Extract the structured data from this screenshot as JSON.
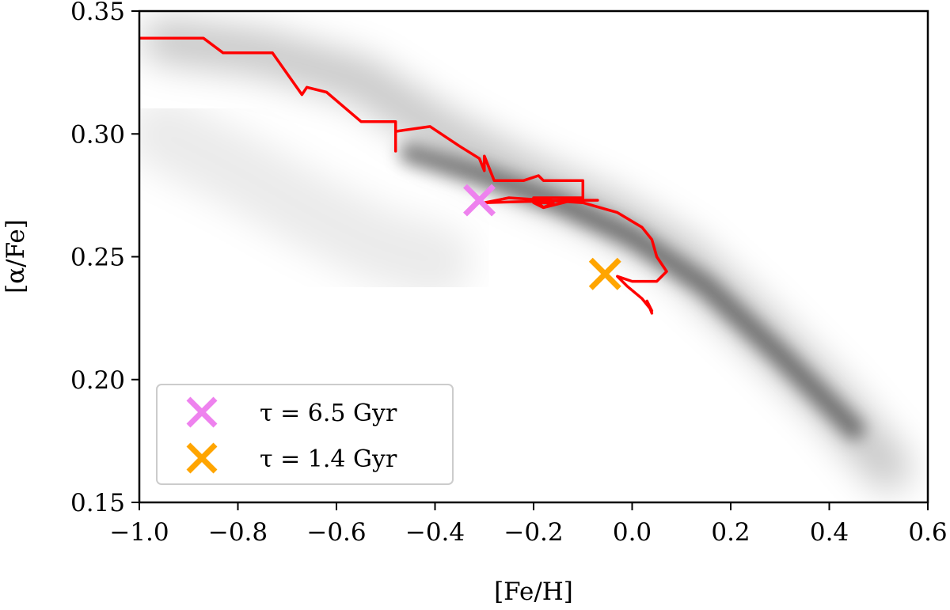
{
  "chart_data": {
    "type": "scatter",
    "title": "",
    "xlabel": "[Fe/H]",
    "ylabel": "[α/Fe]",
    "xlim": [
      -1.0,
      0.6
    ],
    "ylim": [
      0.15,
      0.35
    ],
    "x_ticks": [
      -1.0,
      -0.8,
      -0.6,
      -0.4,
      -0.2,
      0.0,
      0.2,
      0.4,
      0.6
    ],
    "x_tick_labels": [
      "−1.0",
      "−0.8",
      "−0.6",
      "−0.4",
      "−0.2",
      "0.0",
      "0.2",
      "0.4",
      "0.6"
    ],
    "y_ticks": [
      0.15,
      0.2,
      0.25,
      0.3,
      0.35
    ],
    "y_tick_labels": [
      "0.15",
      "0.20",
      "0.25",
      "0.30",
      "0.35"
    ],
    "grid": false,
    "legend_position": "lower-left",
    "density": {
      "color": "#000000",
      "bands": [
        {
          "points": [
            [
              -0.95,
              0.338
            ],
            [
              -0.75,
              0.333
            ],
            [
              -0.55,
              0.322
            ],
            [
              -0.38,
              0.3
            ],
            [
              -0.22,
              0.283
            ],
            [
              -0.05,
              0.268
            ],
            [
              0.1,
              0.25
            ],
            [
              0.25,
              0.222
            ],
            [
              0.4,
              0.192
            ],
            [
              0.52,
              0.164
            ]
          ],
          "width": 0.018,
          "opacity": 0.22
        },
        {
          "points": [
            [
              -0.45,
              0.292
            ],
            [
              -0.3,
              0.283
            ],
            [
              -0.15,
              0.272
            ],
            [
              0.0,
              0.258
            ],
            [
              0.15,
              0.238
            ],
            [
              0.3,
              0.21
            ],
            [
              0.45,
              0.18
            ]
          ],
          "width": 0.009,
          "opacity": 0.45
        },
        {
          "points": [
            [
              -0.95,
              0.3
            ],
            [
              -0.8,
              0.285
            ],
            [
              -0.65,
              0.268
            ],
            [
              -0.52,
              0.255
            ],
            [
              -0.4,
              0.248
            ]
          ],
          "width": 0.03,
          "opacity": 0.08
        }
      ]
    },
    "track": {
      "color": "#ff0000",
      "points": [
        [
          -1.0,
          0.339
        ],
        [
          -0.87,
          0.339
        ],
        [
          -0.83,
          0.333
        ],
        [
          -0.73,
          0.333
        ],
        [
          -0.67,
          0.316
        ],
        [
          -0.66,
          0.319
        ],
        [
          -0.62,
          0.317
        ],
        [
          -0.55,
          0.305
        ],
        [
          -0.48,
          0.305
        ],
        [
          -0.48,
          0.293
        ],
        [
          -0.48,
          0.301
        ],
        [
          -0.41,
          0.303
        ],
        [
          -0.35,
          0.295
        ],
        [
          -0.31,
          0.29
        ],
        [
          -0.3,
          0.285
        ],
        [
          -0.3,
          0.291
        ],
        [
          -0.28,
          0.281
        ],
        [
          -0.22,
          0.281
        ],
        [
          -0.19,
          0.283
        ],
        [
          -0.18,
          0.281
        ],
        [
          -0.1,
          0.281
        ],
        [
          -0.1,
          0.274
        ],
        [
          -0.15,
          0.274
        ],
        [
          -0.2,
          0.274
        ],
        [
          -0.18,
          0.27
        ],
        [
          -0.2,
          0.272
        ],
        [
          -0.16,
          0.272
        ],
        [
          -0.18,
          0.27
        ],
        [
          -0.12,
          0.273
        ],
        [
          -0.07,
          0.273
        ],
        [
          -0.12,
          0.273
        ],
        [
          -0.3,
          0.272
        ],
        [
          -0.25,
          0.274
        ],
        [
          -0.1,
          0.272
        ],
        [
          -0.03,
          0.268
        ],
        [
          0.02,
          0.262
        ],
        [
          0.04,
          0.257
        ],
        [
          0.05,
          0.25
        ],
        [
          0.07,
          0.244
        ],
        [
          0.05,
          0.24
        ],
        [
          0.0,
          0.24
        ],
        [
          -0.03,
          0.242
        ],
        [
          -0.01,
          0.238
        ],
        [
          0.02,
          0.233
        ],
        [
          0.04,
          0.228
        ],
        [
          0.03,
          0.232
        ],
        [
          0.04,
          0.227
        ]
      ]
    },
    "markers": [
      {
        "label": "τ = 6.5 Gyr",
        "x": -0.31,
        "y": 0.273,
        "color": "#ee82ee"
      },
      {
        "label": "τ = 1.4 Gyr",
        "x": -0.055,
        "y": 0.243,
        "color": "#ffa500"
      }
    ]
  }
}
